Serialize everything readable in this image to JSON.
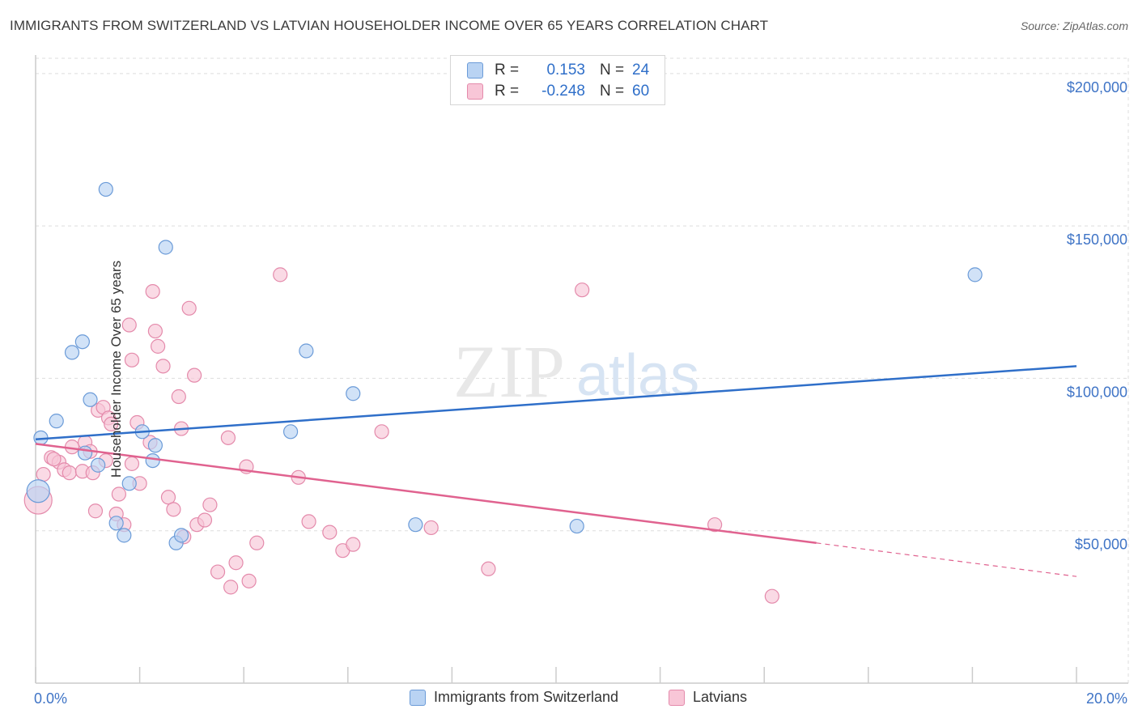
{
  "title": "IMMIGRANTS FROM SWITZERLAND VS LATVIAN HOUSEHOLDER INCOME OVER 65 YEARS CORRELATION CHART",
  "source": "Source: ZipAtlas.com",
  "watermark": {
    "zip": "ZIP",
    "atlas": "atlas"
  },
  "colors": {
    "blue": "#2f6fc9",
    "pink": "#e0628f",
    "blue_fill": "#b9d3f3",
    "pink_fill": "#f8c6d7",
    "axis_label": "#3f74c6",
    "grid": "#dddddd"
  },
  "stats": [
    {
      "label": "R =",
      "r": "0.153",
      "n_label": "N =",
      "n": "24"
    },
    {
      "label": "R =",
      "r": "-0.248",
      "n_label": "N =",
      "n": "60"
    }
  ],
  "legend": [
    "Immigrants from Switzerland",
    "Latvians"
  ],
  "chart_data": {
    "type": "scatter",
    "title": "IMMIGRANTS FROM SWITZERLAND VS LATVIAN HOUSEHOLDER INCOME OVER 65 YEARS CORRELATION CHART",
    "xlabel": "",
    "ylabel": "Householder Income Over 65 years",
    "xlim": [
      0,
      20
    ],
    "ylim": [
      0,
      205000
    ],
    "x_tick_labels": [
      "0.0%",
      "20.0%"
    ],
    "y_ticks": [
      50000,
      100000,
      150000,
      200000
    ],
    "y_tick_labels": [
      "$50,000",
      "$100,000",
      "$150,000",
      "$200,000"
    ],
    "grid": true,
    "legend_position": "bottom",
    "series": [
      {
        "name": "Immigrants from Switzerland",
        "color": "#2f6fc9",
        "points": [
          [
            0.05,
            63000
          ],
          [
            0.1,
            80500
          ],
          [
            0.4,
            86000
          ],
          [
            0.7,
            108500
          ],
          [
            0.9,
            112000
          ],
          [
            1.05,
            93000
          ],
          [
            0.95,
            75500
          ],
          [
            1.2,
            71500
          ],
          [
            1.35,
            162000
          ],
          [
            1.55,
            52500
          ],
          [
            1.7,
            48500
          ],
          [
            1.8,
            65500
          ],
          [
            2.05,
            82500
          ],
          [
            2.25,
            73000
          ],
          [
            2.3,
            78000
          ],
          [
            2.5,
            143000
          ],
          [
            2.7,
            46000
          ],
          [
            2.8,
            48500
          ],
          [
            4.9,
            82500
          ],
          [
            5.2,
            109000
          ],
          [
            6.1,
            95000
          ],
          [
            7.3,
            52000
          ],
          [
            10.4,
            51500
          ],
          [
            18.05,
            134000
          ]
        ],
        "trend": {
          "x": [
            0,
            20
          ],
          "y": [
            80000,
            104000
          ]
        }
      },
      {
        "name": "Latvians",
        "color": "#e0628f",
        "points": [
          [
            0.05,
            60000
          ],
          [
            0.15,
            68500
          ],
          [
            0.3,
            74000
          ],
          [
            0.45,
            72500
          ],
          [
            0.55,
            70000
          ],
          [
            0.65,
            69000
          ],
          [
            0.7,
            77500
          ],
          [
            0.9,
            69500
          ],
          [
            0.95,
            79000
          ],
          [
            1.05,
            76000
          ],
          [
            1.1,
            69000
          ],
          [
            1.15,
            56500
          ],
          [
            1.2,
            89500
          ],
          [
            1.3,
            90500
          ],
          [
            1.35,
            73000
          ],
          [
            1.4,
            87000
          ],
          [
            1.45,
            85000
          ],
          [
            1.55,
            55500
          ],
          [
            1.6,
            62000
          ],
          [
            1.7,
            52000
          ],
          [
            1.8,
            117500
          ],
          [
            1.85,
            106000
          ],
          [
            1.95,
            85500
          ],
          [
            2.0,
            65500
          ],
          [
            2.2,
            79000
          ],
          [
            2.25,
            128500
          ],
          [
            2.3,
            115500
          ],
          [
            2.35,
            110500
          ],
          [
            2.45,
            104000
          ],
          [
            2.55,
            61000
          ],
          [
            2.65,
            57000
          ],
          [
            2.75,
            94000
          ],
          [
            2.8,
            83500
          ],
          [
            2.85,
            48000
          ],
          [
            2.95,
            123000
          ],
          [
            3.05,
            101000
          ],
          [
            3.1,
            52000
          ],
          [
            3.25,
            53500
          ],
          [
            3.35,
            58500
          ],
          [
            3.5,
            36500
          ],
          [
            3.7,
            80500
          ],
          [
            3.75,
            31500
          ],
          [
            3.85,
            39500
          ],
          [
            4.05,
            71000
          ],
          [
            4.1,
            33500
          ],
          [
            4.25,
            46000
          ],
          [
            4.7,
            134000
          ],
          [
            5.05,
            67500
          ],
          [
            5.25,
            53000
          ],
          [
            5.65,
            49500
          ],
          [
            5.9,
            43500
          ],
          [
            6.1,
            45500
          ],
          [
            6.65,
            82500
          ],
          [
            7.6,
            51000
          ],
          [
            8.7,
            37500
          ],
          [
            10.5,
            129000
          ],
          [
            13.05,
            52000
          ],
          [
            14.15,
            28500
          ],
          [
            0.35,
            73500
          ],
          [
            1.85,
            72000
          ]
        ],
        "trend": {
          "x": [
            0,
            15
          ],
          "y": [
            78500,
            46000
          ]
        },
        "trend_dashed": {
          "x": [
            15,
            20
          ],
          "y": [
            46000,
            35000
          ]
        }
      }
    ]
  }
}
